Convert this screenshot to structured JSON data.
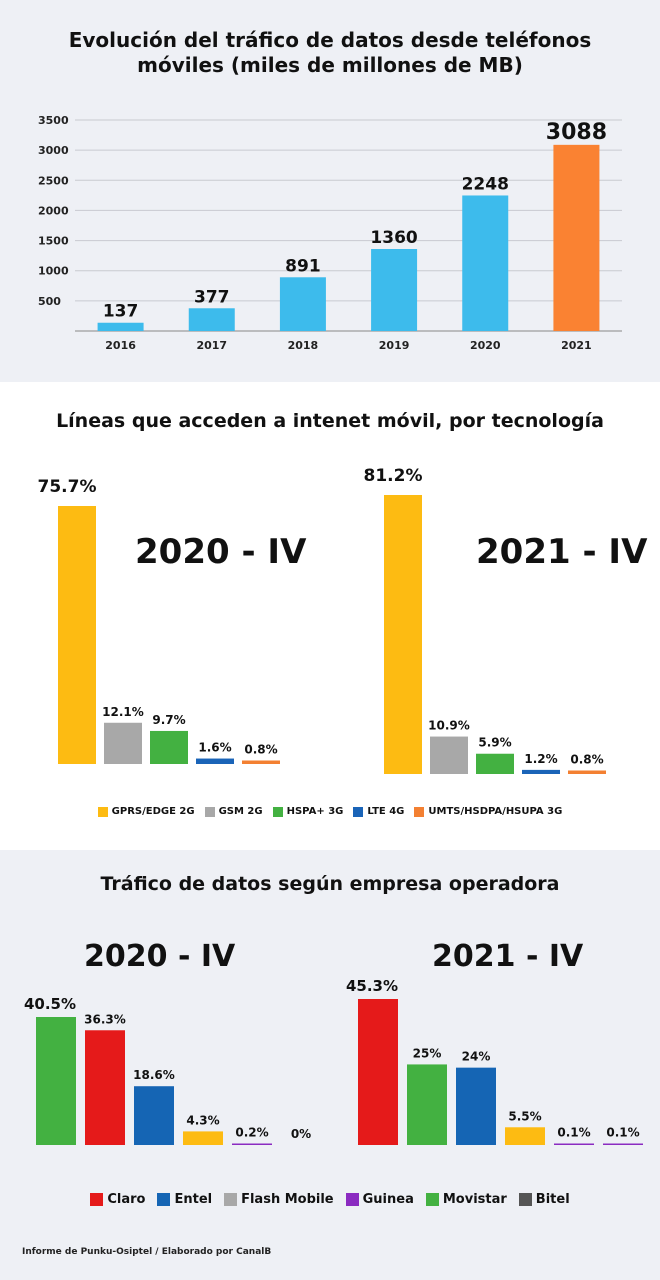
{
  "chart_data": [
    {
      "type": "bar",
      "title": "Evolución del tráfico de datos desde teléfonos móviles (miles de millones de MB)",
      "categories": [
        "2016",
        "2017",
        "2018",
        "2019",
        "2020",
        "2021"
      ],
      "values": [
        137,
        377,
        891,
        1360,
        2248,
        3088
      ],
      "value_labels": [
        "137",
        "377",
        "891",
        "1360",
        "2248",
        "3088"
      ],
      "colors": [
        "#3dbbec",
        "#3dbbec",
        "#3dbbec",
        "#3dbbec",
        "#3dbbec",
        "#fa8232"
      ],
      "yticks": [
        "500",
        "1000",
        "1500",
        "2000",
        "2500",
        "3000",
        "3500"
      ],
      "ylim": [
        0,
        3500
      ],
      "grid": true
    },
    {
      "type": "bar",
      "title": "Líneas que acceden a intenet móvil, por tecnología",
      "legend": "bottom",
      "legend_entries": [
        {
          "name": "GPRS/EDGE 2G",
          "color": "#fdbb12"
        },
        {
          "name": "GSM 2G",
          "color": "#a8a8a8"
        },
        {
          "name": "HSPA+ 3G",
          "color": "#43b141"
        },
        {
          "name": "LTE 4G",
          "color": "#1a64b8"
        },
        {
          "name": "UMTS/HSDPA/HSUPA 3G",
          "color": "#f38032"
        }
      ],
      "groups": [
        {
          "label": "2020 - IV",
          "values": [
            75.7,
            12.1,
            9.7,
            1.6,
            0.8
          ],
          "value_labels": [
            "75.7%",
            "12.1%",
            "9.7%",
            "1.6%",
            "0.8%"
          ]
        },
        {
          "label": "2021 - IV",
          "values": [
            81.2,
            10.9,
            5.9,
            1.2,
            0.8
          ],
          "value_labels": [
            "81.2%",
            "10.9%",
            "5.9%",
            "1.2%",
            "0.8%"
          ]
        }
      ]
    },
    {
      "type": "bar",
      "title": "Tráfico de datos según empresa operadora",
      "legend": "bottom",
      "legend_entries": [
        {
          "name": "Claro",
          "color": "#e51a1a"
        },
        {
          "name": "Entel",
          "color": "#1565b4"
        },
        {
          "name": "Flash Mobile",
          "color": "#a8a8a8"
        },
        {
          "name": "Guinea",
          "color": "#8b2bc1"
        },
        {
          "name": "Movistar",
          "color": "#43b141"
        },
        {
          "name": "Bitel",
          "color": "#555555"
        }
      ],
      "groups": [
        {
          "label": "2020 - IV",
          "values": [
            40.5,
            36.3,
            18.6,
            4.3,
            0.2,
            0
          ],
          "value_labels": [
            "40.5%",
            "36.3%",
            "18.6%",
            "4.3%",
            "0.2%",
            "0%"
          ],
          "colors": [
            "#43b141",
            "#e51a1a",
            "#1565b4",
            "#fdbb12",
            "#8b2bc1",
            "#555555"
          ]
        },
        {
          "label": "2021 - IV",
          "values": [
            45.3,
            25,
            24,
            5.5,
            0.1,
            0.1
          ],
          "value_labels": [
            "45.3%",
            "25%",
            "24%",
            "5.5%",
            "0.1%",
            "0.1%"
          ],
          "colors": [
            "#e51a1a",
            "#43b141",
            "#1565b4",
            "#fdbb12",
            "#8b2bc1",
            "#8b2bc1"
          ]
        }
      ]
    }
  ],
  "footer": "Informe de Punku-Osiptel / Elaborado por CanalB"
}
